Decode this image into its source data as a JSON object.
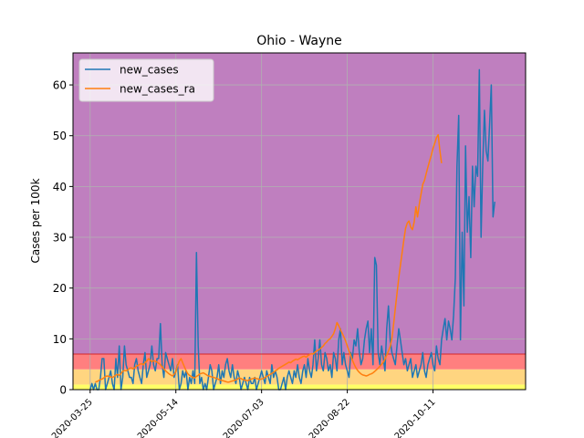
{
  "chart_data": {
    "type": "line",
    "title": "Ohio - Wayne",
    "xlabel": "",
    "ylabel": "Cases per 100k",
    "x_start": "2020-03-15",
    "x_ticks": [
      "2020-03-25",
      "2020-05-14",
      "2020-07-03",
      "2020-08-22",
      "2020-10-11"
    ],
    "xlim": [
      "2020-03-15",
      "2020-12-04"
    ],
    "ylim": [
      0,
      66.3
    ],
    "y_ticks": [
      0,
      10,
      20,
      30,
      40,
      50,
      60
    ],
    "grid": true,
    "legend_position": "upper-left",
    "bands": [
      {
        "from": 0,
        "to": 1,
        "color": "#ffff66"
      },
      {
        "from": 1,
        "to": 4,
        "color": "#ffd580"
      },
      {
        "from": 4,
        "to": 7,
        "color": "#ff7f7f"
      },
      {
        "from": 7,
        "to": 66.3,
        "color": "#bf7fbf"
      }
    ],
    "threshold_line": {
      "value": 7,
      "color": "#d62728"
    },
    "series": [
      {
        "name": "new_cases",
        "color": "#1f77b4",
        "start": "2020-03-25",
        "values": [
          0,
          1.2,
          0,
          1.2,
          0,
          0,
          2.4,
          6.1,
          6.1,
          0,
          1.2,
          2.4,
          3.7,
          1.2,
          0,
          6.1,
          2.4,
          8.6,
          0,
          2.4,
          8.6,
          4.9,
          3.7,
          2.4,
          2.4,
          1.2,
          4.9,
          6.1,
          3.7,
          2.4,
          1.2,
          4.9,
          7.3,
          2.4,
          3.7,
          4.9,
          8.6,
          4.9,
          3.7,
          6.1,
          6.1,
          13,
          4.9,
          2.4,
          7.3,
          6.1,
          4.9,
          3.7,
          6.1,
          2.4,
          3.7,
          4.9,
          0,
          1.2,
          3.7,
          2.4,
          3.7,
          0,
          2.4,
          1.2,
          3.7,
          1.2,
          27,
          8.6,
          1.2,
          2.4,
          0,
          1.2,
          0,
          2.4,
          4.9,
          3.7,
          0,
          1.2,
          2.4,
          4.9,
          1.2,
          3.7,
          2.4,
          4.9,
          6.1,
          3.7,
          2.4,
          4.9,
          2.4,
          1.2,
          3.7,
          2.4,
          0,
          1.2,
          2.4,
          1.2,
          0,
          2.4,
          1.2,
          1.2,
          2.4,
          0,
          1.2,
          2.4,
          3.7,
          2.4,
          1.2,
          3.7,
          2.4,
          1.2,
          4.9,
          2.4,
          3.7,
          2.4,
          0,
          0,
          1.2,
          2.4,
          0,
          2.4,
          3.7,
          2.4,
          1.2,
          3.7,
          2.4,
          4.9,
          2.4,
          1.2,
          3.7,
          4.9,
          2.4,
          6.1,
          3.7,
          2.4,
          4.9,
          9.8,
          3.7,
          6.1,
          9.8,
          4.9,
          3.7,
          7.3,
          6.1,
          3.7,
          4.9,
          2.4,
          7.3,
          6.1,
          3.7,
          9.8,
          12,
          4.9,
          7.3,
          4.9,
          3.7,
          2.4,
          7.3,
          6.1,
          9.8,
          8.6,
          12,
          7.3,
          4.9,
          6.1,
          9.8,
          12,
          13.5,
          7.3,
          12,
          4.9,
          26,
          24.5,
          7.3,
          4.9,
          8.6,
          6.1,
          3.7,
          12,
          16.5,
          9.8,
          7.3,
          6.1,
          4.9,
          8.6,
          12,
          9.8,
          7.3,
          4.9,
          6.1,
          3.7,
          4.9,
          6.1,
          2.4,
          3.7,
          4.9,
          2.4,
          3.7,
          4.9,
          7.3,
          3.7,
          2.4,
          4.9,
          6.1,
          7.3,
          4.9,
          3.7,
          8.6,
          6.1,
          4.9,
          9.8,
          12,
          14,
          9.8,
          13.5,
          12,
          9.8,
          14.7,
          22,
          44,
          54,
          9.8,
          31,
          16.5,
          48,
          31,
          38,
          26,
          44,
          36,
          44,
          42,
          63,
          30,
          44,
          55,
          47,
          45,
          52,
          60,
          34,
          37
        ]
      },
      {
        "name": "new_cases_ra",
        "color": "#ff7f0e",
        "start": "2020-03-28",
        "values": [
          1.5,
          1.6,
          1.8,
          2,
          2.1,
          2.3,
          2.6,
          2.7,
          2.6,
          2.5,
          2.4,
          2.6,
          2.9,
          3,
          2.8,
          3.2,
          3.6,
          3.8,
          3.7,
          3.9,
          4.2,
          4.3,
          4.1,
          4.3,
          4.6,
          4.8,
          5,
          5.1,
          4.9,
          5.3,
          5.6,
          6.1,
          5.8,
          5.5,
          5.7,
          5.6,
          5.4,
          5.2,
          4.9,
          4.5,
          4.1,
          3.7,
          3.4,
          3.1,
          2.9,
          2.7,
          3,
          3.5,
          4.7,
          5.6,
          6.1,
          5.3,
          4.5,
          3.7,
          3.1,
          2.8,
          2.6,
          2.4,
          2.3,
          2.6,
          2.8,
          3.1,
          3.2,
          3.3,
          3.1,
          2.9,
          2.7,
          2.6,
          2.5,
          2.4,
          2.3,
          2.2,
          2,
          1.9,
          1.8,
          1.7,
          1.6,
          1.5,
          1.5,
          1.6,
          1.7,
          1.8,
          1.9,
          2.1,
          2.3,
          2.2,
          2,
          1.9,
          1.8,
          1.8,
          1.9,
          2.1,
          2.2,
          2.3,
          2.2,
          2.1,
          2,
          2.1,
          2.2,
          2.4,
          2.6,
          2.8,
          3,
          3.2,
          3.4,
          3.7,
          3.9,
          4.2,
          4.4,
          4.6,
          4.8,
          5,
          5.2,
          5.4,
          5.3,
          5.6,
          5.8,
          6,
          5.9,
          6.1,
          6.3,
          6.5,
          6.6,
          6.4,
          6.7,
          6.9,
          7.1,
          7,
          7.3,
          7.6,
          7.8,
          8,
          8.3,
          8.6,
          9.1,
          9.4,
          9.8,
          10,
          10.5,
          11,
          12,
          13.2,
          12.6,
          11.8,
          11.1,
          10.4,
          9.6,
          8.6,
          7.6,
          6.7,
          5.8,
          5,
          4.3,
          3.8,
          3.4,
          3.1,
          2.9,
          2.8,
          2.7,
          2.8,
          3,
          3.1,
          3.3,
          3.6,
          3.9,
          4.2,
          4.6,
          5,
          5.4,
          6,
          6.8,
          7.6,
          8.5,
          10.1,
          12.8,
          16,
          19,
          22,
          24.5,
          27,
          29.5,
          31.8,
          32.8,
          33.2,
          32,
          31.5,
          33,
          36,
          34,
          36.5,
          38.5,
          40.4,
          41.2,
          42.5,
          43.8,
          45,
          46.2,
          47.5,
          48.5,
          49.6,
          50.2,
          47,
          44.6
        ]
      }
    ]
  }
}
